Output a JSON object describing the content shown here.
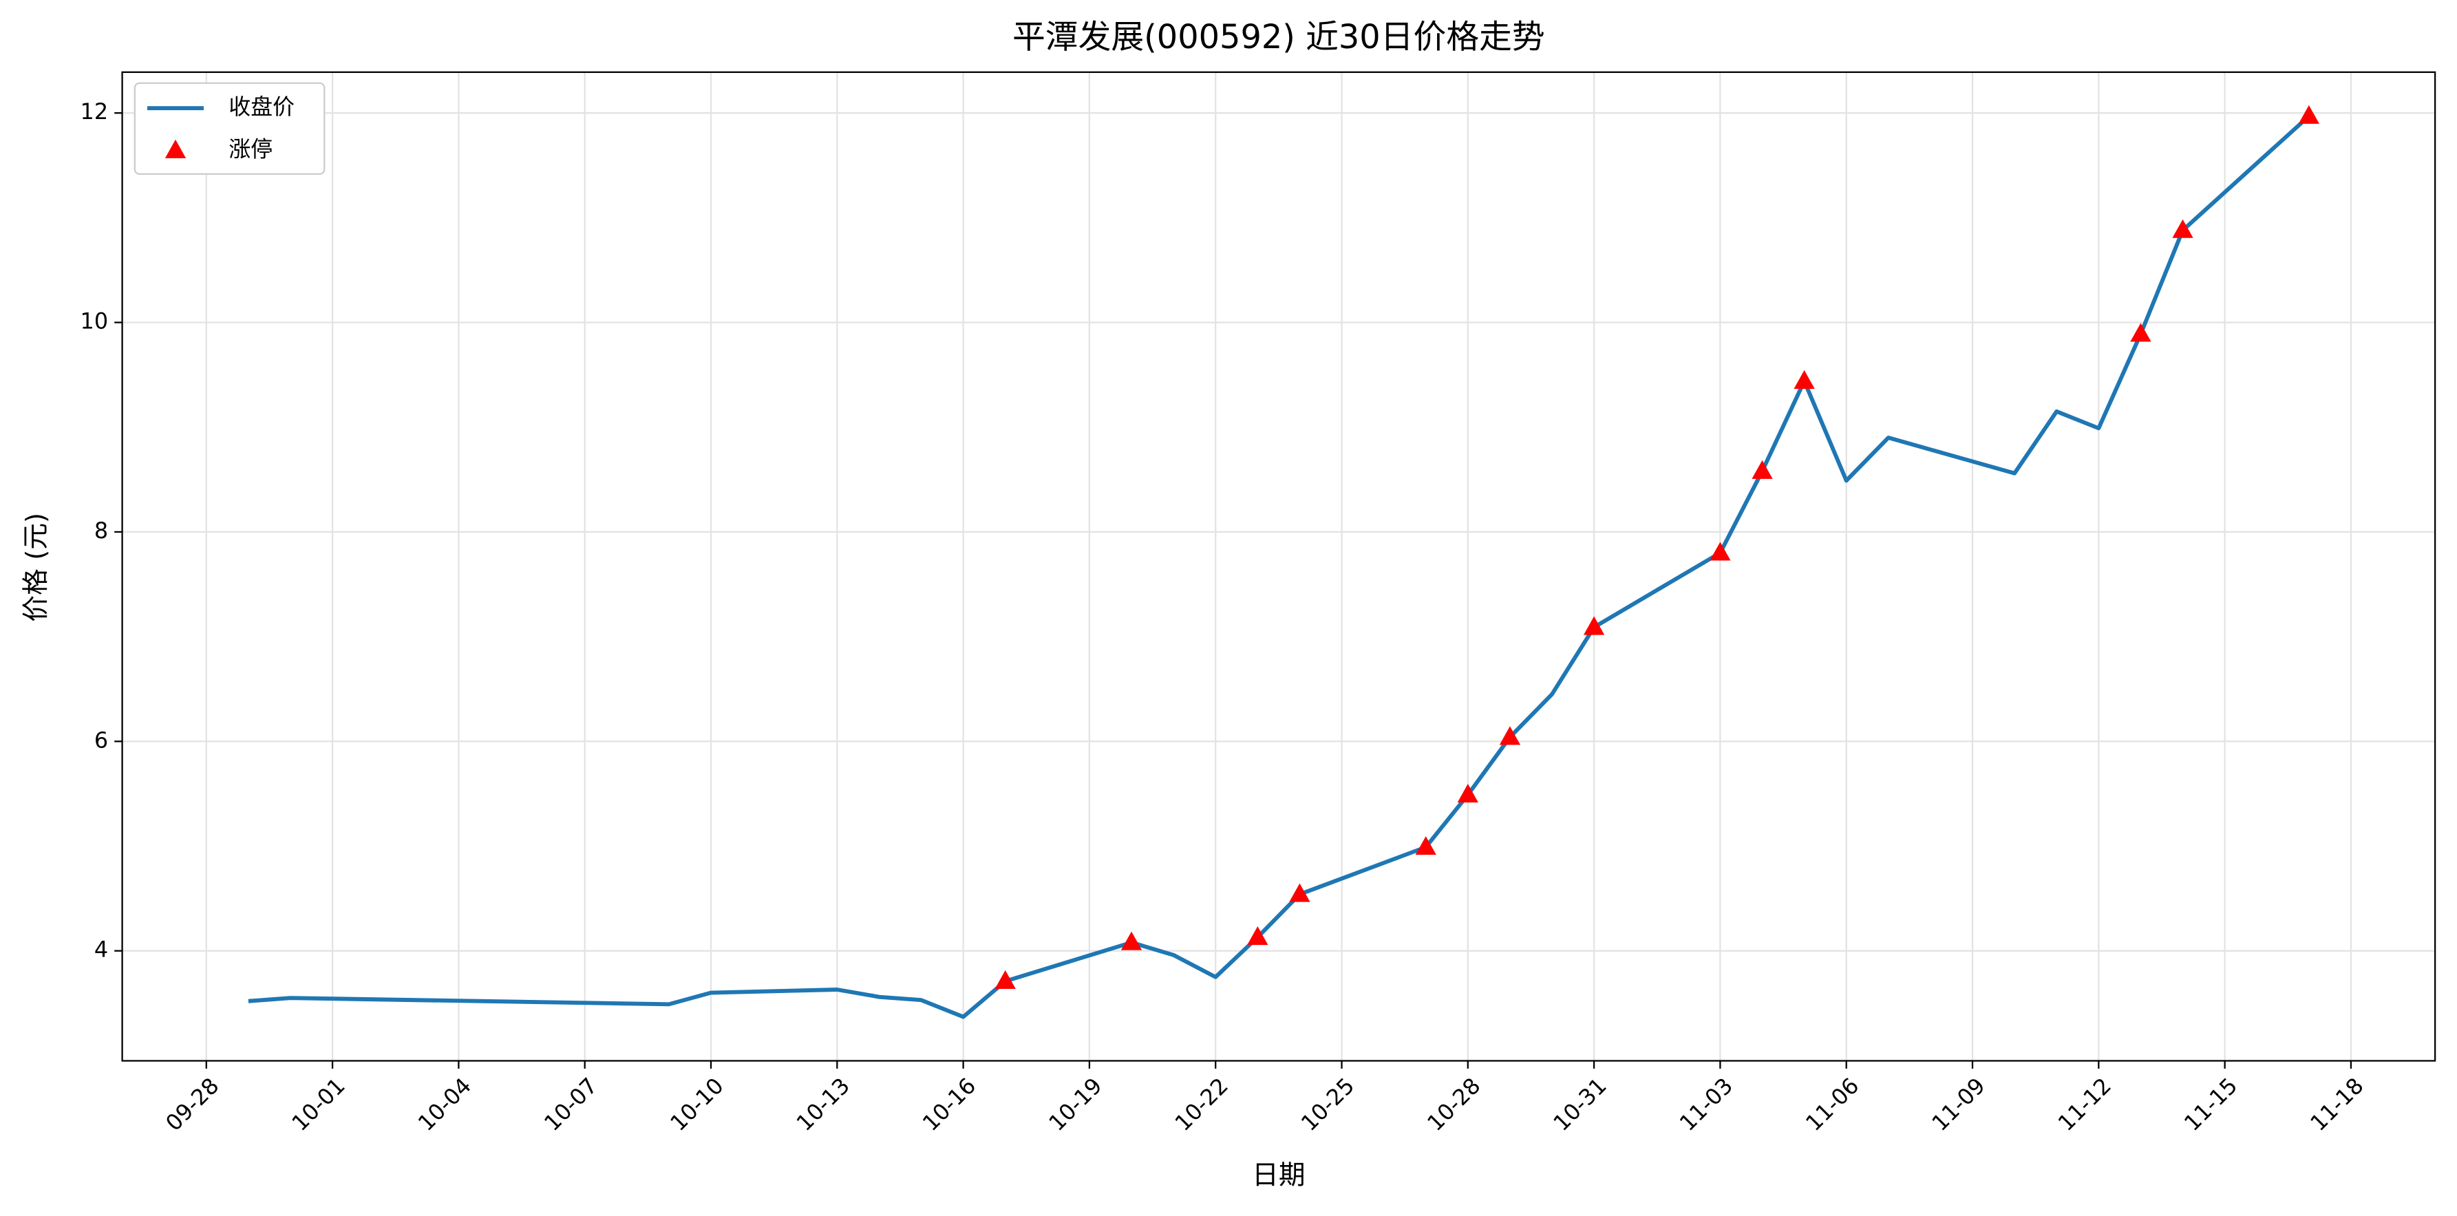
{
  "chart_data": {
    "type": "line",
    "title": "平潭发展(000592) 近30日价格走势",
    "x_label": "日期",
    "y_label": "价格 (元)",
    "x": [
      "09-29",
      "09-30",
      "10-09",
      "10-10",
      "10-13",
      "10-14",
      "10-15",
      "10-16",
      "10-17",
      "10-20",
      "10-21",
      "10-22",
      "10-23",
      "10-24",
      "10-27",
      "10-28",
      "10-29",
      "10-30",
      "10-31",
      "11-03",
      "11-04",
      "11-05",
      "11-06",
      "11-07",
      "11-10",
      "11-11",
      "11-12",
      "11-13",
      "11-14",
      "11-17"
    ],
    "series": [
      {
        "name": "收盘价",
        "color": "#1f77b4",
        "values": [
          3.52,
          3.55,
          3.49,
          3.6,
          3.63,
          3.56,
          3.53,
          3.37,
          3.71,
          4.08,
          3.96,
          3.75,
          4.13,
          4.54,
          4.99,
          5.49,
          6.04,
          6.45,
          7.09,
          7.8,
          8.58,
          9.44,
          8.49,
          8.9,
          8.56,
          9.15,
          8.99,
          9.89,
          10.88,
          11.97
        ]
      },
      {
        "name": "涨停",
        "color": "#ff0000",
        "marker": "triangle",
        "x": [
          "10-17",
          "10-20",
          "10-23",
          "10-24",
          "10-27",
          "10-28",
          "10-29",
          "10-31",
          "11-03",
          "11-04",
          "11-05",
          "11-13",
          "11-14",
          "11-17"
        ],
        "values": [
          3.71,
          4.08,
          4.13,
          4.54,
          4.99,
          5.49,
          6.04,
          7.09,
          7.8,
          8.58,
          9.44,
          9.89,
          10.88,
          11.97
        ]
      }
    ],
    "xlim": [
      "09-26",
      "11-20"
    ],
    "xticks": [
      "09-28",
      "10-01",
      "10-04",
      "10-07",
      "10-10",
      "10-13",
      "10-16",
      "10-19",
      "10-22",
      "10-25",
      "10-28",
      "10-31",
      "11-03",
      "11-06",
      "11-09",
      "11-12",
      "11-15",
      "11-18"
    ],
    "ylim": [
      2.95,
      12.39
    ],
    "yticks": [
      4,
      6,
      8,
      10,
      12
    ],
    "grid": true,
    "legend": "upper-left"
  }
}
